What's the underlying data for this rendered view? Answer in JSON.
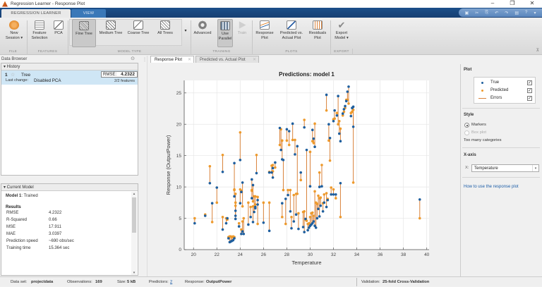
{
  "window": {
    "title": "Regression Learner - Response Plot",
    "controls": {
      "minimize": "–",
      "restore": "❐",
      "close": "✕"
    }
  },
  "ribbon_tabs": [
    {
      "label": "REGRESSION LEARNER",
      "active": true
    },
    {
      "label": "VIEW",
      "active": false
    }
  ],
  "ribbon": {
    "groups": [
      {
        "label": "FILE"
      },
      {
        "label": "FEATURES"
      },
      {
        "label": "MODEL TYPE"
      },
      {
        "label": "TRAINING"
      },
      {
        "label": "PLOTS"
      },
      {
        "label": "EXPORT"
      }
    ],
    "buttons": {
      "new_session": {
        "line1": "New",
        "line2": "Session ▾"
      },
      "feature_selection": {
        "line1": "Feature",
        "line2": "Selection"
      },
      "pca": {
        "line1": "PCA",
        "line2": ""
      },
      "fine_tree": {
        "line1": "Fine Tree",
        "line2": ""
      },
      "medium_tree": {
        "line1": "Medium Tree",
        "line2": ""
      },
      "coarse_tree": {
        "line1": "Coarse Tree",
        "line2": ""
      },
      "all_trees": {
        "line1": "All Trees",
        "line2": ""
      },
      "advanced": {
        "line1": "Advanced",
        "line2": ""
      },
      "use_parallel": {
        "line1": "Use",
        "line2": "Parallel"
      },
      "train": {
        "line1": "Train",
        "line2": ""
      },
      "response_plot": {
        "line1": "Response",
        "line2": "Plot"
      },
      "predicted_actual": {
        "line1": "Predicted vs.",
        "line2": "Actual Plot"
      },
      "residuals_plot": {
        "line1": "Residuals",
        "line2": "Plot"
      },
      "export_model": {
        "line1": "Export",
        "line2": "Model ▾"
      }
    }
  },
  "data_browser": {
    "title": "Data Browser",
    "history": {
      "header": "▾ History",
      "items": [
        {
          "number": "1",
          "name": "Tree",
          "rmse_label": "RMSE:",
          "rmse_value": "4.2322",
          "last_change_label": "Last change:",
          "last_change_value": "Disabled PCA",
          "features": "2/2 features"
        }
      ]
    },
    "current_model": {
      "header": "▾ Current Model",
      "model_name": "Model 1",
      "model_status": ": Trained",
      "results_label": "Results",
      "results": [
        {
          "label": "RMSE",
          "value": "4.2322"
        },
        {
          "label": "R-Squared",
          "value": "0.66"
        },
        {
          "label": "MSE",
          "value": "17.911"
        },
        {
          "label": "MAE",
          "value": "3.0397"
        },
        {
          "label": "Prediction speed",
          "value": "~690 obs/sec"
        },
        {
          "label": "Training time",
          "value": "15.364 sec"
        }
      ]
    }
  },
  "doc_tabs": [
    {
      "label": "Response Plot",
      "active": true
    },
    {
      "label": "Predicted vs. Actual Plot",
      "active": false
    }
  ],
  "plot_options": {
    "plot_section": "Plot",
    "legend": [
      {
        "label": "True",
        "color": "#1f5f9e",
        "checked": true
      },
      {
        "label": "Predicted",
        "color": "#ee9a2c",
        "checked": true
      },
      {
        "label": "Errors",
        "color": "#d9823b",
        "checked": true
      }
    ],
    "style_section": "Style",
    "style_options": [
      {
        "label": "Markers",
        "selected": true,
        "enabled": true
      },
      {
        "label": "Box plot",
        "selected": false,
        "enabled": false
      }
    ],
    "style_note": "Too many categories",
    "xaxis_section": "X-axis",
    "xaxis_prefix": "X:",
    "xaxis_value": "Temperature",
    "help_link": "How to use the response plot"
  },
  "status_bar": {
    "dataset_label": "Data set:",
    "dataset_value": "projectdata",
    "observations_label": "Observations:",
    "observations_value": "169",
    "size_label": "Size:",
    "size_value": "5 kB",
    "predictors_label": "Predictors:",
    "predictors_value": "2",
    "response_label": "Response:",
    "response_value": "OutputPower",
    "validation_label": "Validation:",
    "validation_value": "25-fold Cross-Validation"
  },
  "colors": {
    "true_marker": "#1f5f9e",
    "predicted_marker": "#ee9a2c",
    "error_line": "#d9823b",
    "ribbon_blue": "#173f72",
    "selection": "#cfe6f5"
  },
  "chart_data": {
    "type": "scatter",
    "title": "Predictions: model 1",
    "xlabel": "Temperature",
    "ylabel": "Response (OutputPower)",
    "xlim": [
      19.2,
      40.2
    ],
    "ylim": [
      0,
      27
    ],
    "xticks": [
      20,
      22,
      24,
      26,
      28,
      30,
      32,
      34,
      36,
      38,
      40
    ],
    "yticks": [
      0,
      5,
      10,
      15,
      20,
      25
    ],
    "grid": true,
    "legend": [
      "True",
      "Predicted",
      "Errors"
    ],
    "points": [
      [
        20.1,
        4.2,
        5.0
      ],
      [
        21.0,
        5.4,
        5.6
      ],
      [
        21.4,
        10.6,
        13.3
      ],
      [
        21.6,
        7.4,
        4.4
      ],
      [
        22.0,
        9.9,
        7.5
      ],
      [
        22.5,
        3.2,
        5.2
      ],
      [
        22.5,
        12.4,
        15.1
      ],
      [
        22.8,
        4.2,
        5.0
      ],
      [
        22.9,
        5.0,
        4.8
      ],
      [
        23.0,
        1.8,
        2.0
      ],
      [
        23.1,
        1.2,
        2.1
      ],
      [
        23.2,
        1.3,
        2.1
      ],
      [
        23.3,
        1.4,
        2.0
      ],
      [
        23.4,
        1.5,
        2.1
      ],
      [
        23.5,
        1.8,
        2.0
      ],
      [
        23.5,
        8.5,
        9.5
      ],
      [
        23.5,
        13.8,
        9.6
      ],
      [
        23.6,
        6.2,
        8.9
      ],
      [
        23.6,
        5.4,
        7.5
      ],
      [
        23.6,
        4.9,
        7.0
      ],
      [
        23.9,
        3.7,
        4.2
      ],
      [
        24.0,
        7.4,
        9.6
      ],
      [
        24.0,
        14.3,
        18.7
      ],
      [
        24.1,
        2.5,
        3.2
      ],
      [
        24.1,
        9.2,
        9.4
      ],
      [
        24.2,
        2.9,
        4.5
      ],
      [
        24.2,
        10.7,
        6.9
      ],
      [
        24.3,
        2.5,
        5.0
      ],
      [
        24.7,
        4.0,
        7.5
      ],
      [
        24.9,
        5.2,
        6.8
      ],
      [
        25.0,
        8.2,
        9.4
      ],
      [
        25.0,
        11.2,
        9.5
      ],
      [
        25.1,
        4.4,
        6.9
      ],
      [
        25.1,
        10.3,
        7.7
      ],
      [
        25.2,
        6.0,
        8.5
      ],
      [
        25.3,
        6.6,
        8.5
      ],
      [
        25.4,
        12.2,
        15.1
      ],
      [
        25.5,
        7.2,
        8.4
      ],
      [
        25.5,
        7.9,
        4.1
      ],
      [
        25.3,
        6.8,
        7.2
      ],
      [
        26.0,
        4.3,
        7.5
      ],
      [
        26.5,
        3.0,
        7.5
      ],
      [
        26.5,
        12.3,
        12.4
      ],
      [
        26.7,
        12.3,
        13.4
      ],
      [
        26.8,
        11.5,
        12.5
      ],
      [
        26.8,
        13.0,
        13.5
      ],
      [
        27.0,
        13.9,
        13.1
      ],
      [
        27.4,
        19.4,
        16.7
      ],
      [
        27.5,
        15.9,
        19.2
      ],
      [
        27.6,
        7.4,
        5.2
      ],
      [
        27.6,
        14.4,
        17.4
      ],
      [
        27.7,
        14.3,
        9.5
      ],
      [
        27.9,
        8.1,
        4.1
      ],
      [
        28.0,
        19.2,
        17.4
      ],
      [
        28.1,
        8.7,
        9.5
      ],
      [
        28.2,
        18.9,
        16.7
      ],
      [
        28.3,
        6.1,
        9.5
      ],
      [
        28.4,
        3.4,
        5.2
      ],
      [
        28.5,
        20.1,
        17.5
      ],
      [
        28.6,
        4.5,
        8.7
      ],
      [
        28.7,
        15.2,
        17.5
      ],
      [
        28.8,
        5.6,
        8.9
      ],
      [
        28.9,
        16.5,
        8.9
      ],
      [
        29.0,
        3.3,
        5.8
      ],
      [
        29.2,
        12.3,
        11.1
      ],
      [
        29.4,
        3.6,
        6.0
      ],
      [
        29.5,
        2.8,
        6.1
      ],
      [
        29.5,
        19.5,
        20.7
      ],
      [
        29.6,
        4.9,
        4.8
      ],
      [
        29.7,
        15.9,
        4.6
      ],
      [
        29.8,
        3.1,
        4.1
      ],
      [
        29.9,
        3.5,
        4.2
      ],
      [
        30.0,
        10.1,
        15.6
      ],
      [
        30.0,
        3.8,
        5.2
      ],
      [
        30.1,
        4.0,
        5.8
      ],
      [
        30.2,
        4.2,
        5.9
      ],
      [
        30.2,
        19.1,
        17.3
      ],
      [
        30.3,
        17.7,
        17.0
      ],
      [
        30.3,
        4.5,
        5.4
      ],
      [
        30.4,
        3.8,
        9.3
      ],
      [
        30.4,
        16.4,
        20.1
      ],
      [
        30.5,
        3.5,
        7.5
      ],
      [
        30.6,
        5.0,
        7.3
      ],
      [
        30.7,
        6.5,
        8.6
      ],
      [
        30.8,
        5.3,
        8.2
      ],
      [
        30.8,
        10.0,
        12.3
      ],
      [
        30.9,
        7.0,
        8.3
      ],
      [
        31.0,
        10.1,
        13.5
      ],
      [
        31.1,
        6.1,
        7.4
      ],
      [
        31.2,
        7.5,
        8.8
      ],
      [
        31.4,
        6.8,
        9.0
      ],
      [
        31.4,
        24.7,
        22.2
      ],
      [
        31.5,
        7.9,
        8.1
      ],
      [
        31.6,
        20.0,
        17.4
      ],
      [
        31.7,
        17.8,
        14.2
      ],
      [
        31.8,
        8.8,
        9.9
      ],
      [
        32.0,
        8.8,
        9.6
      ],
      [
        32.0,
        20.5,
        20.8
      ],
      [
        32.1,
        22.2,
        20.9
      ],
      [
        32.2,
        8.8,
        8.2
      ],
      [
        32.3,
        21.4,
        21.8
      ],
      [
        32.4,
        24.5,
        20.0
      ],
      [
        32.5,
        18.5,
        20.5
      ],
      [
        32.6,
        10.6,
        5.2
      ],
      [
        32.6,
        17.3,
        19.3
      ],
      [
        32.8,
        21.7,
        21.4
      ],
      [
        32.9,
        22.4,
        22.0
      ],
      [
        33.0,
        22.9,
        22.6
      ],
      [
        33.1,
        23.7,
        23.9
      ],
      [
        33.2,
        25.2,
        23.9
      ],
      [
        33.3,
        26.0,
        23.3
      ],
      [
        33.5,
        21.3,
        21.8
      ],
      [
        33.6,
        22.6,
        22.0
      ],
      [
        33.7,
        22.8,
        10.7
      ],
      [
        33.7,
        19.6,
        22.3
      ],
      [
        39.4,
        8.0,
        5.0
      ]
    ]
  }
}
